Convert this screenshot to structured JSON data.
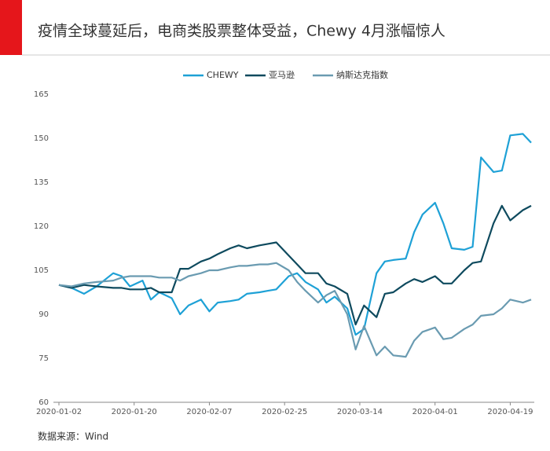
{
  "chart_data": {
    "type": "line",
    "title": "疫情全球蔓延后，电商类股票整体受益，Chewy 4月涨幅惊人",
    "source": "数据来源：Wind",
    "x": [
      "2020-01-02",
      "2020-01-05",
      "2020-01-08",
      "2020-01-11",
      "2020-01-15",
      "2020-01-17",
      "2020-01-19",
      "2020-01-22",
      "2020-01-24",
      "2020-01-26",
      "2020-01-29",
      "2020-01-31",
      "2020-02-02",
      "2020-02-05",
      "2020-02-07",
      "2020-02-09",
      "2020-02-12",
      "2020-02-14",
      "2020-02-16",
      "2020-02-19",
      "2020-02-21",
      "2020-02-23",
      "2020-02-26",
      "2020-02-28",
      "2020-03-01",
      "2020-03-04",
      "2020-03-06",
      "2020-03-08",
      "2020-03-11",
      "2020-03-13",
      "2020-03-15",
      "2020-03-18",
      "2020-03-20",
      "2020-03-22",
      "2020-03-25",
      "2020-03-27",
      "2020-03-29",
      "2020-04-01",
      "2020-04-03",
      "2020-04-05",
      "2020-04-08",
      "2020-04-10",
      "2020-04-12",
      "2020-04-15",
      "2020-04-17",
      "2020-04-19",
      "2020-04-22",
      "2020-04-24"
    ],
    "series": [
      {
        "name": "CHEWY",
        "color": "#1ea1d6",
        "values": [
          100,
          99,
          97,
          99.5,
          104,
          103,
          99.5,
          101.5,
          95,
          97.5,
          95.5,
          90,
          93,
          95,
          91,
          94,
          94.5,
          95,
          97,
          97.5,
          98,
          98.5,
          103,
          104,
          101,
          98.5,
          94,
          96,
          92,
          83,
          85,
          104,
          108,
          108.5,
          109,
          118,
          124,
          128,
          121,
          112.5,
          112,
          113,
          143.5,
          138.5,
          139,
          151,
          151.5,
          148.5
        ]
      },
      {
        "name": "亚马逊",
        "color": "#0e4a5e",
        "values": [
          100,
          99,
          100,
          99.5,
          99,
          99,
          98.5,
          98.5,
          99,
          97.5,
          97.5,
          105.5,
          105.5,
          108,
          109,
          110.5,
          112.5,
          113.5,
          112.5,
          113.5,
          114,
          114.5,
          110,
          107,
          104,
          104,
          100.5,
          99.5,
          97,
          86.5,
          93,
          89,
          97,
          97.5,
          100.5,
          102,
          101,
          103,
          100.5,
          100.5,
          105,
          107.5,
          108,
          121,
          127,
          122,
          125.5,
          127
        ]
      },
      {
        "name": "纳斯达克指数",
        "color": "#6a9bb1",
        "values": [
          100,
          99.5,
          100.5,
          101,
          101.5,
          102.5,
          103,
          103,
          103,
          102.5,
          102.5,
          101.5,
          103,
          104,
          105,
          105,
          106,
          106.5,
          106.5,
          107,
          107,
          107.5,
          105,
          101,
          98,
          94,
          96.5,
          98,
          90,
          78,
          86,
          76,
          79,
          76,
          75.5,
          81,
          84,
          85.5,
          81.5,
          82,
          85,
          86.5,
          89.5,
          90,
          92,
          95,
          94,
          95
        ]
      }
    ],
    "xlim": [
      "2020-01-02",
      "2020-04-24"
    ],
    "xticks": [
      "2020-01-02",
      "2020-01-20",
      "2020-02-07",
      "2020-02-25",
      "2020-03-14",
      "2020-04-01",
      "2020-04-19"
    ],
    "ylim": [
      60,
      165
    ],
    "yticks": [
      60,
      75,
      90,
      105,
      120,
      135,
      150,
      165
    ],
    "grid": false,
    "legend": "top"
  }
}
